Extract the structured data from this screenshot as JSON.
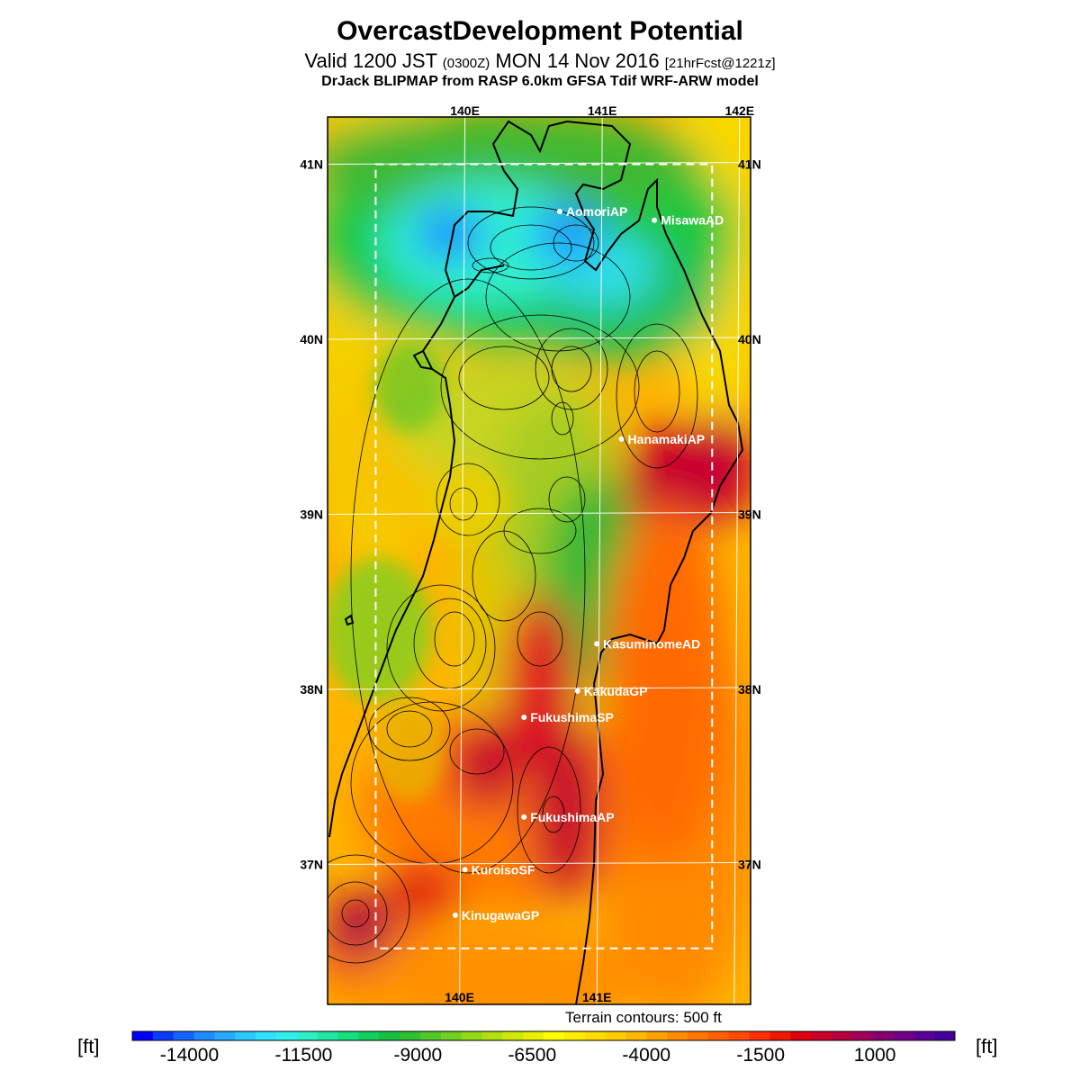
{
  "title": "OvercastDevelopment Potential",
  "subtitle_main": "Valid 1200 JST",
  "subtitle_utc": "(0300Z)",
  "subtitle_date": "MON 14 Nov 2016",
  "subtitle_fcst": "[21hrFcst@1221z]",
  "model_line": "DrJack BLIPMAP from RASP 6.0km GFSA Tdif WRF-ARW model",
  "terrain_note": "Terrain contours: 500 ft",
  "unit": "[ft]",
  "map": {
    "lon_range": [
      139.0,
      142.08
    ],
    "lat_range": [
      36.2,
      41.27
    ],
    "grid_lons": [
      140,
      141,
      142
    ],
    "grid_lats": [
      37,
      38,
      39,
      40,
      41
    ],
    "top_lon_labels": [
      "140E",
      "141E",
      "142E"
    ],
    "bottom_lon_labels": [
      "140E",
      "141E"
    ],
    "left_lat_labels": [
      "37N",
      "38N",
      "39N",
      "40N",
      "41N"
    ],
    "right_lat_labels": [
      "37N",
      "38N",
      "39N",
      "40N",
      "41N"
    ],
    "inner_box": {
      "lon": [
        139.35,
        141.8
      ],
      "lat": [
        36.52,
        41.0
      ]
    }
  },
  "stations": [
    {
      "name": "AomoriAP",
      "lon": 140.69,
      "lat": 40.73
    },
    {
      "name": "MisawaAD",
      "lon": 141.38,
      "lat": 40.68
    },
    {
      "name": "HanamakiAP",
      "lon": 141.14,
      "lat": 39.43
    },
    {
      "name": "KasuminomeAD",
      "lon": 140.96,
      "lat": 38.26
    },
    {
      "name": "KakudaGP",
      "lon": 140.82,
      "lat": 37.99
    },
    {
      "name": "FukushimaSP",
      "lon": 140.43,
      "lat": 37.84
    },
    {
      "name": "FukushimaAP",
      "lon": 140.43,
      "lat": 37.27
    },
    {
      "name": "KuroisoSF",
      "lon": 140.0,
      "lat": 36.97
    },
    {
      "name": "KinugawaGP",
      "lon": 139.93,
      "lat": 36.71
    }
  ],
  "colorbar": {
    "min": -15250,
    "max": 2750,
    "step": 500,
    "labels": [
      "-14000",
      "-11500",
      "-9000",
      "-6500",
      "-4000",
      "-1500",
      "1000"
    ],
    "label_values": [
      -14000,
      -11500,
      -9000,
      -6500,
      -4000,
      -1500,
      1000
    ],
    "colors": [
      "#0000ff",
      "#0a3cff",
      "#1464ff",
      "#1e8cff",
      "#28aaff",
      "#2ac8ff",
      "#30e0ff",
      "#30f0ee",
      "#2ef0c8",
      "#20e8a0",
      "#14e080",
      "#10d060",
      "#18c040",
      "#30c030",
      "#50c828",
      "#70d020",
      "#90d818",
      "#b0e010",
      "#d0e808",
      "#e8f000",
      "#ffff00",
      "#ffee00",
      "#ffdd00",
      "#ffcc00",
      "#ffb800",
      "#ffa200",
      "#ff8c00",
      "#ff7600",
      "#ff6000",
      "#ff4a00",
      "#ff3000",
      "#ee1a00",
      "#dd0010",
      "#c8002a",
      "#b40040",
      "#a00058",
      "#880070",
      "#700088",
      "#5a0098",
      "#44009a"
    ]
  }
}
